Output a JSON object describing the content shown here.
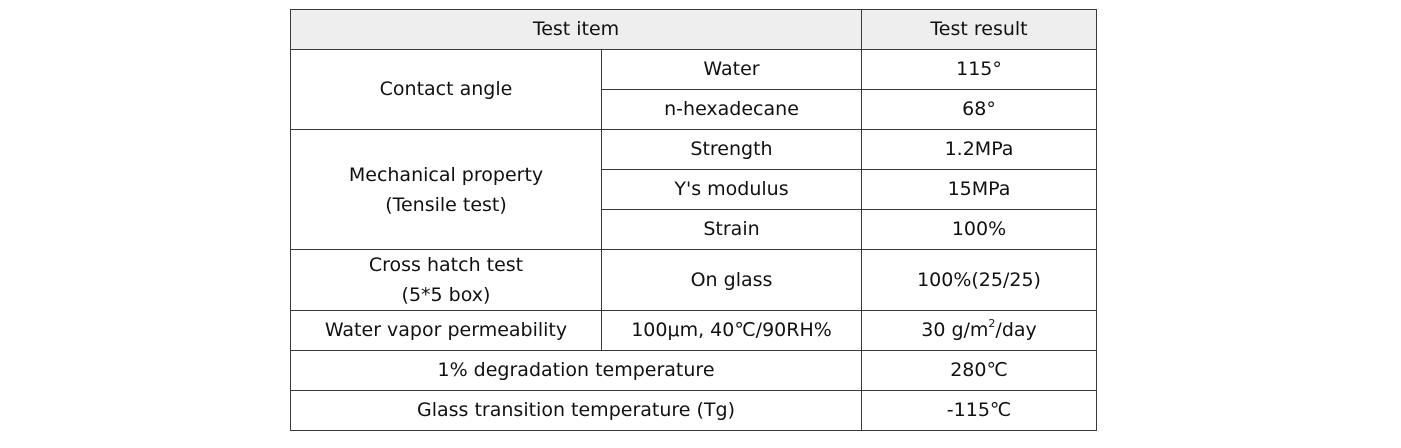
{
  "table": {
    "header": {
      "test_item": "Test item",
      "test_result": "Test result"
    },
    "contact_angle": {
      "label": "Contact angle",
      "rows": [
        {
          "condition": "Water",
          "result": "115°"
        },
        {
          "condition": "n-hexadecane",
          "result": "68°"
        }
      ]
    },
    "mechanical": {
      "label_line1": "Mechanical property",
      "label_line2": "(Tensile test)",
      "rows": [
        {
          "condition": "Strength",
          "result": "1.2MPa"
        },
        {
          "condition": "Y's modulus",
          "result": "15MPa"
        },
        {
          "condition": "Strain",
          "result": "100%"
        }
      ]
    },
    "cross_hatch": {
      "label_line1": "Cross hatch test",
      "label_line2": "(5*5 box)",
      "condition": "On glass",
      "result": "100%(25/25)"
    },
    "water_vapor": {
      "label": "Water vapor permeability",
      "condition": "100μm, 40℃/90RH%",
      "result_prefix": "30 g/m",
      "result_sup": "2",
      "result_suffix": "/day"
    },
    "degradation": {
      "label": "1% degradation temperature",
      "result": "280℃"
    },
    "glass_transition": {
      "label": "Glass transition temperature (Tg)",
      "result": "-115℃"
    }
  }
}
